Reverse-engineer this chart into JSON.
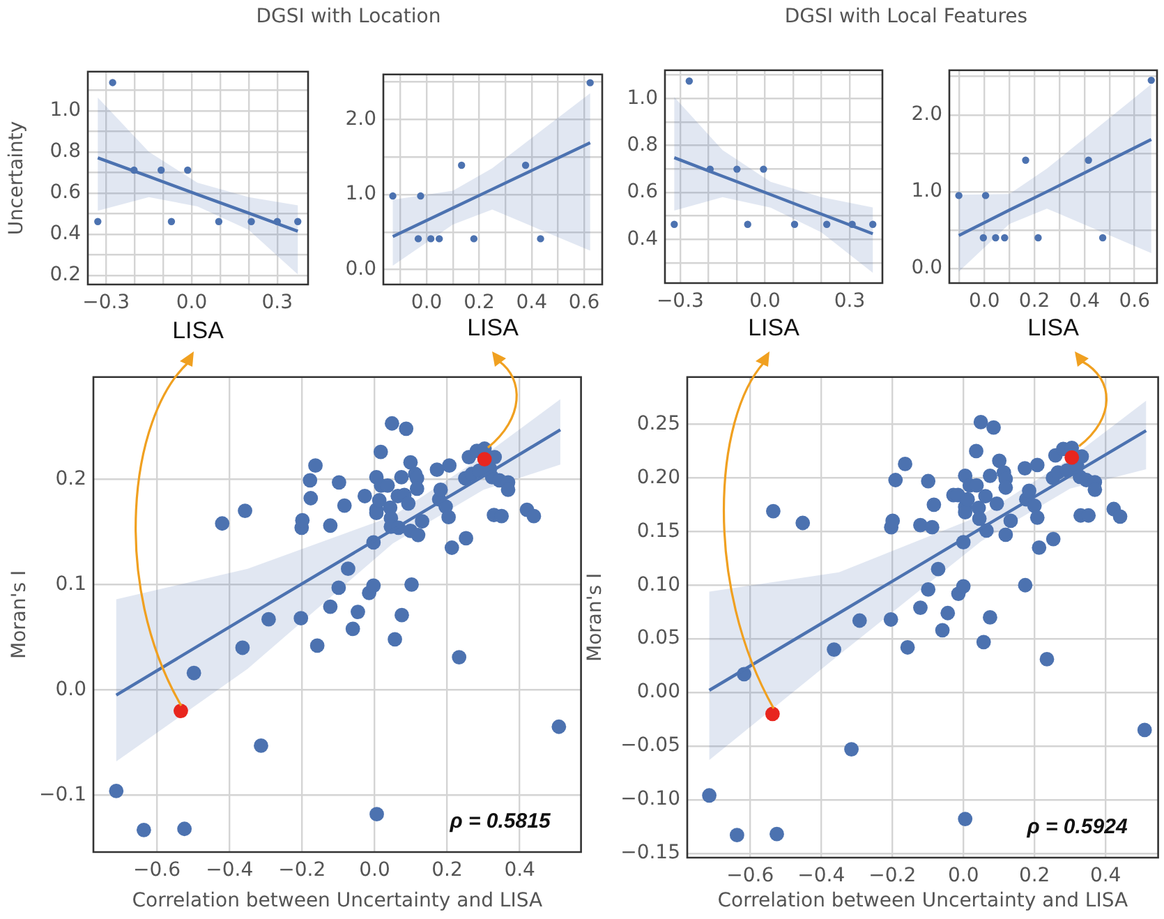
{
  "chart_data": [
    {
      "type": "scatter",
      "title": "DGSI with Location",
      "xlabel": "LISA",
      "ylabel": "Uncertainty",
      "grid": true,
      "marker": "circle",
      "xlim": [
        -0.364,
        0.408
      ],
      "ylim": [
        0.155,
        1.19
      ],
      "xticks": [
        {
          "value": -0.3,
          "label": "−0.3"
        },
        {
          "value": -0.2,
          "label": null
        },
        {
          "value": -0.1,
          "label": null
        },
        {
          "value": 0,
          "label": "0.0"
        },
        {
          "value": 0.1,
          "label": null
        },
        {
          "value": 0.2,
          "label": null
        },
        {
          "value": 0.3,
          "label": "0.3"
        }
      ],
      "yticks": [
        {
          "value": 0.2,
          "label": "0.2"
        },
        {
          "value": 0.3,
          "label": null
        },
        {
          "value": 0.4,
          "label": "0.4"
        },
        {
          "value": 0.5,
          "label": null
        },
        {
          "value": 0.6,
          "label": "0.6"
        },
        {
          "value": 0.7,
          "label": null
        },
        {
          "value": 0.8,
          "label": "0.8"
        },
        {
          "value": 0.9,
          "label": null
        },
        {
          "value": 1.0,
          "label": "1.0"
        },
        {
          "value": 1.1,
          "label": null
        }
      ],
      "series": [
        {
          "color": "#4c72b0",
          "x": [
            -0.329,
            -0.277,
            -0.202,
            -0.107,
            -0.071,
            -0.014,
            0.095,
            0.209,
            0.3,
            0.372
          ],
          "values": [
            0.461,
            1.137,
            0.711,
            0.711,
            0.461,
            0.711,
            0.461,
            0.461,
            0.461,
            0.461
          ]
        },
        {
          "type": "line",
          "color": "#4c72b0",
          "marker": "none",
          "x": [
            -0.329,
            -0.15,
            0.02,
            0.2,
            0.372
          ],
          "values": [
            0.771,
            0.68,
            0.593,
            0.502,
            0.414
          ],
          "lower": [
            0.514,
            0.58,
            0.535,
            0.42,
            0.204
          ],
          "upper": [
            1.064,
            0.8,
            0.65,
            0.58,
            0.54
          ]
        }
      ]
    },
    {
      "type": "scatter",
      "xlabel": "LISA",
      "grid": true,
      "marker": "circle",
      "xlim": [
        -0.165,
        0.669
      ],
      "ylim": [
        -0.2,
        2.6
      ],
      "xticks": [
        {
          "value": -0.1,
          "label": null
        },
        {
          "value": 0,
          "label": "0.0"
        },
        {
          "value": 0.1,
          "label": null
        },
        {
          "value": 0.2,
          "label": "0.2"
        },
        {
          "value": 0.3,
          "label": null
        },
        {
          "value": 0.4,
          "label": "0.4"
        },
        {
          "value": 0.5,
          "label": null
        },
        {
          "value": 0.6,
          "label": "0.6"
        }
      ],
      "yticks": [
        {
          "value": 0,
          "label": "0.0"
        },
        {
          "value": 0.5,
          "label": null
        },
        {
          "value": 1.0,
          "label": "1.0"
        },
        {
          "value": 1.5,
          "label": null
        },
        {
          "value": 2.0,
          "label": "2.0"
        },
        {
          "value": 2.5,
          "label": null
        }
      ],
      "series": [
        {
          "color": "#4c72b0",
          "x": [
            -0.129,
            -0.023,
            -0.032,
            0.016,
            0.048,
            0.133,
            0.18,
            0.377,
            0.434,
            0.623
          ],
          "values": [
            0.98,
            0.98,
            0.41,
            0.41,
            0.41,
            1.39,
            0.41,
            1.39,
            0.41,
            2.49
          ]
        },
        {
          "type": "line",
          "color": "#4c72b0",
          "marker": "none",
          "x": [
            -0.129,
            0.1,
            0.25,
            0.623
          ],
          "values": [
            0.44,
            0.82,
            1.07,
            1.69
          ],
          "lower": [
            0.05,
            0.6,
            0.8,
            0.25
          ],
          "upper": [
            0.93,
            1.05,
            1.35,
            2.35
          ]
        }
      ]
    },
    {
      "type": "scatter",
      "title": "DGSI with Local Features",
      "xlabel": "LISA",
      "grid": true,
      "marker": "circle",
      "xlim": [
        -0.354,
        0.416
      ],
      "ylim": [
        0.214,
        1.12
      ],
      "xticks": [
        {
          "value": -0.3,
          "label": "−0.3"
        },
        {
          "value": -0.2,
          "label": null
        },
        {
          "value": -0.1,
          "label": null
        },
        {
          "value": 0,
          "label": "0.0"
        },
        {
          "value": 0.1,
          "label": null
        },
        {
          "value": 0.2,
          "label": null
        },
        {
          "value": 0.3,
          "label": "0.3"
        }
      ],
      "yticks": [
        {
          "value": 0.3,
          "label": null
        },
        {
          "value": 0.4,
          "label": "0.4"
        },
        {
          "value": 0.5,
          "label": null
        },
        {
          "value": 0.6,
          "label": "0.6"
        },
        {
          "value": 0.7,
          "label": null
        },
        {
          "value": 0.8,
          "label": "0.8"
        },
        {
          "value": 0.9,
          "label": null
        },
        {
          "value": 1.0,
          "label": "1.0"
        },
        {
          "value": 1.1,
          "label": null
        }
      ],
      "series": [
        {
          "color": "#4c72b0",
          "x": [
            -0.321,
            -0.268,
            -0.194,
            -0.099,
            -0.061,
            -0.005,
            0.105,
            0.219,
            0.309,
            0.382
          ],
          "values": [
            0.464,
            1.074,
            0.699,
            0.699,
            0.464,
            0.699,
            0.464,
            0.464,
            0.464,
            0.464
          ]
        },
        {
          "type": "line",
          "color": "#4c72b0",
          "marker": "none",
          "x": [
            -0.321,
            -0.15,
            0.02,
            0.2,
            0.382
          ],
          "values": [
            0.748,
            0.669,
            0.591,
            0.508,
            0.424
          ],
          "lower": [
            0.523,
            0.58,
            0.535,
            0.43,
            0.258
          ],
          "upper": [
            1.006,
            0.78,
            0.645,
            0.58,
            0.536
          ]
        }
      ]
    },
    {
      "type": "scatter",
      "xlabel": "LISA",
      "grid": true,
      "marker": "circle",
      "xlim": [
        -0.14,
        0.69
      ],
      "ylim": [
        -0.19,
        2.58
      ],
      "xticks": [
        {
          "value": -0.1,
          "label": null
        },
        {
          "value": 0,
          "label": "0.0"
        },
        {
          "value": 0.1,
          "label": null
        },
        {
          "value": 0.2,
          "label": "0.2"
        },
        {
          "value": 0.3,
          "label": null
        },
        {
          "value": 0.4,
          "label": "0.4"
        },
        {
          "value": 0.5,
          "label": null
        },
        {
          "value": 0.6,
          "label": "0.6"
        }
      ],
      "yticks": [
        {
          "value": 0,
          "label": "0.0"
        },
        {
          "value": 0.5,
          "label": null
        },
        {
          "value": 1.0,
          "label": "1.0"
        },
        {
          "value": 1.5,
          "label": null
        },
        {
          "value": 2.0,
          "label": "2.0"
        },
        {
          "value": 2.5,
          "label": null
        }
      ],
      "series": [
        {
          "color": "#4c72b0",
          "x": [
            -0.102,
            0.005,
            -0.004,
            0.045,
            0.081,
            0.165,
            0.215,
            0.416,
            0.473,
            0.667
          ],
          "values": [
            0.95,
            0.95,
            0.4,
            0.4,
            0.4,
            1.41,
            0.4,
            1.41,
            0.4,
            2.45
          ]
        },
        {
          "type": "line",
          "color": "#4c72b0",
          "marker": "none",
          "x": [
            -0.102,
            0.1,
            0.25,
            0.667
          ],
          "values": [
            0.43,
            0.76,
            1.0,
            1.68
          ],
          "lower": [
            -0.04,
            0.58,
            0.78,
            0.2
          ],
          "upper": [
            0.96,
            0.97,
            1.3,
            2.4
          ]
        }
      ]
    },
    {
      "type": "scatter",
      "xlabel": "Correlation between Uncertainty and LISA",
      "ylabel": "Moran's I",
      "grid": true,
      "marker": "circle",
      "annotations": [
        "ρ = 0.5815"
      ],
      "xlim": [
        -0.775,
        0.569
      ],
      "ylim": [
        -0.154,
        0.297
      ],
      "xticks": [
        {
          "value": -0.6,
          "label": "−0.6"
        },
        {
          "value": -0.4,
          "label": "−0.4"
        },
        {
          "value": -0.2,
          "label": "−0.2"
        },
        {
          "value": 0,
          "label": "0.0"
        },
        {
          "value": 0.2,
          "label": "0.2"
        },
        {
          "value": 0.4,
          "label": "0.4"
        }
      ],
      "yticks": [
        {
          "value": -0.1,
          "label": "−0.1"
        },
        {
          "value": 0,
          "label": "0.0"
        },
        {
          "value": 0.1,
          "label": "0.1"
        },
        {
          "value": 0.2,
          "label": "0.2"
        }
      ],
      "series": [
        {
          "color": "#4c72b0",
          "x": [
            -0.712,
            -0.636,
            -0.524,
            -0.498,
            -0.42,
            -0.357,
            -0.364,
            -0.313,
            -0.292,
            -0.203,
            -0.201,
            -0.199,
            -0.158,
            -0.178,
            -0.176,
            -0.163,
            -0.122,
            -0.122,
            -0.099,
            -0.098,
            -0.083,
            -0.073,
            -0.06,
            -0.046,
            -0.027,
            -0.015,
            -0.003,
            -0.003,
            0.005,
            0.005,
            0.005,
            0.006,
            0.013,
            0.017,
            0.018,
            0.036,
            0.043,
            0.045,
            0.045,
            0.048,
            0.056,
            0.064,
            0.066,
            0.074,
            0.075,
            0.082,
            0.087,
            0.093,
            0.099,
            0.099,
            0.102,
            0.112,
            0.117,
            0.117,
            0.12,
            0.131,
            0.172,
            0.178,
            0.182,
            0.196,
            0.204,
            0.206,
            0.213,
            0.233,
            0.25,
            0.252,
            0.26,
            0.268,
            0.282,
            0.288,
            0.303,
            0.318,
            0.324,
            0.329,
            0.331,
            0.344,
            0.35,
            0.368,
            0.368,
            0.42,
            0.439,
            0.508
          ],
          "values": [
            -0.096,
            -0.133,
            -0.132,
            0.016,
            0.158,
            0.17,
            0.04,
            -0.053,
            0.067,
            0.068,
            0.154,
            0.161,
            0.042,
            0.199,
            0.182,
            0.213,
            0.156,
            0.079,
            0.097,
            0.197,
            0.175,
            0.115,
            0.058,
            0.074,
            0.184,
            0.092,
            0.099,
            0.14,
            0.202,
            0.171,
            0.168,
            -0.118,
            0.18,
            0.226,
            0.194,
            0.194,
            0.173,
            0.163,
            0.155,
            0.253,
            0.048,
            0.184,
            0.154,
            0.202,
            0.071,
            0.185,
            0.248,
            0.177,
            0.216,
            0.151,
            0.1,
            0.205,
            0.201,
            0.191,
            0.147,
            0.16,
            0.209,
            0.181,
            0.19,
            0.174,
            0.164,
            0.213,
            0.135,
            0.031,
            0.201,
            0.144,
            0.221,
            0.205,
            0.227,
            0.208,
            0.229,
            0.21,
            0.202,
            0.166,
            0.221,
            0.199,
            0.165,
            0.197,
            0.19,
            0.171,
            0.165,
            -0.035
          ]
        },
        {
          "type": "line",
          "color": "#4c72b0",
          "marker": "none",
          "x": [
            -0.712,
            -0.35,
            0.05,
            0.3,
            0.512
          ],
          "values": [
            -0.005,
            0.07,
            0.152,
            0.203,
            0.247
          ],
          "lower": [
            -0.068,
            0.02,
            0.139,
            0.19,
            0.214
          ],
          "upper": [
            0.086,
            0.115,
            0.165,
            0.222,
            0.276
          ]
        },
        {
          "color": "#e8261e",
          "x": [
            -0.534,
            0.303
          ],
          "values": [
            -0.02,
            0.219
          ]
        }
      ]
    },
    {
      "type": "scatter",
      "xlabel": "Correlation between Uncertainty and LISA",
      "ylabel": "Moran's I",
      "grid": true,
      "marker": "circle",
      "annotations": [
        "ρ = 0.5924"
      ],
      "xlim": [
        -0.777,
        0.548
      ],
      "ylim": [
        -0.154,
        0.294
      ],
      "xticks": [
        {
          "value": -0.6,
          "label": "−0.6"
        },
        {
          "value": -0.4,
          "label": "−0.4"
        },
        {
          "value": -0.2,
          "label": "−0.2"
        },
        {
          "value": 0,
          "label": "0.0"
        },
        {
          "value": 0.2,
          "label": "0.2"
        },
        {
          "value": 0.4,
          "label": "0.4"
        }
      ],
      "yticks": [
        {
          "value": -0.15,
          "label": "−0.15"
        },
        {
          "value": -0.1,
          "label": "−0.10"
        },
        {
          "value": -0.05,
          "label": "−0.05"
        },
        {
          "value": 0,
          "label": "0.00"
        },
        {
          "value": 0.05,
          "label": "0.05"
        },
        {
          "value": 0.1,
          "label": "0.10"
        },
        {
          "value": 0.15,
          "label": "0.15"
        },
        {
          "value": 0.2,
          "label": "0.20"
        },
        {
          "value": 0.25,
          "label": "0.25"
        }
      ],
      "series": [
        {
          "color": "#4c72b0",
          "x": [
            -0.715,
            -0.637,
            -0.525,
            -0.617,
            -0.535,
            -0.452,
            -0.364,
            -0.315,
            -0.292,
            -0.204,
            -0.203,
            -0.199,
            -0.157,
            -0.191,
            -0.164,
            -0.121,
            -0.121,
            -0.099,
            -0.099,
            -0.088,
            -0.083,
            -0.071,
            -0.059,
            -0.044,
            -0.028,
            -0.015,
            -0.014,
            0.0,
            0.0,
            0.005,
            0.005,
            0.005,
            0.005,
            0.012,
            0.018,
            0.037,
            0.036,
            0.043,
            0.045,
            0.049,
            0.057,
            0.062,
            0.065,
            0.075,
            0.075,
            0.085,
            0.094,
            0.101,
            0.119,
            0.114,
            0.119,
            0.119,
            0.133,
            0.173,
            0.174,
            0.177,
            0.185,
            0.2,
            0.208,
            0.208,
            0.213,
            0.235,
            0.252,
            0.253,
            0.259,
            0.266,
            0.281,
            0.292,
            0.305,
            0.32,
            0.328,
            0.33,
            0.333,
            0.346,
            0.352,
            0.37,
            0.37,
            0.423,
            0.441,
            0.51
          ],
          "values": [
            -0.096,
            -0.133,
            -0.132,
            0.017,
            0.169,
            0.158,
            0.04,
            -0.053,
            0.067,
            0.068,
            0.154,
            0.16,
            0.042,
            0.198,
            0.213,
            0.156,
            0.079,
            0.096,
            0.197,
            0.154,
            0.175,
            0.115,
            0.058,
            0.074,
            0.184,
            0.184,
            0.092,
            0.099,
            0.14,
            0.202,
            0.173,
            0.168,
            -0.118,
            0.18,
            0.193,
            0.193,
            0.225,
            0.172,
            0.162,
            0.252,
            0.047,
            0.183,
            0.151,
            0.202,
            0.07,
            0.247,
            0.176,
            0.216,
            0.147,
            0.205,
            0.199,
            0.191,
            0.16,
            0.209,
            0.1,
            0.18,
            0.188,
            0.174,
            0.163,
            0.212,
            0.135,
            0.031,
            0.2,
            0.143,
            0.221,
            0.205,
            0.227,
            0.207,
            0.228,
            0.211,
            0.201,
            0.165,
            0.22,
            0.198,
            0.165,
            0.196,
            0.189,
            0.171,
            0.164,
            -0.035
          ]
        },
        {
          "type": "line",
          "color": "#4c72b0",
          "marker": "none",
          "x": [
            -0.715,
            -0.35,
            0.05,
            0.3,
            0.514
          ],
          "values": [
            0.002,
            0.074,
            0.153,
            0.202,
            0.244
          ],
          "lower": [
            -0.063,
            0.035,
            0.141,
            0.19,
            0.208
          ],
          "upper": [
            0.094,
            0.112,
            0.165,
            0.218,
            0.272
          ]
        },
        {
          "color": "#e8261e",
          "x": [
            -0.537,
            0.305
          ],
          "values": [
            -0.02,
            0.219
          ]
        }
      ]
    }
  ]
}
